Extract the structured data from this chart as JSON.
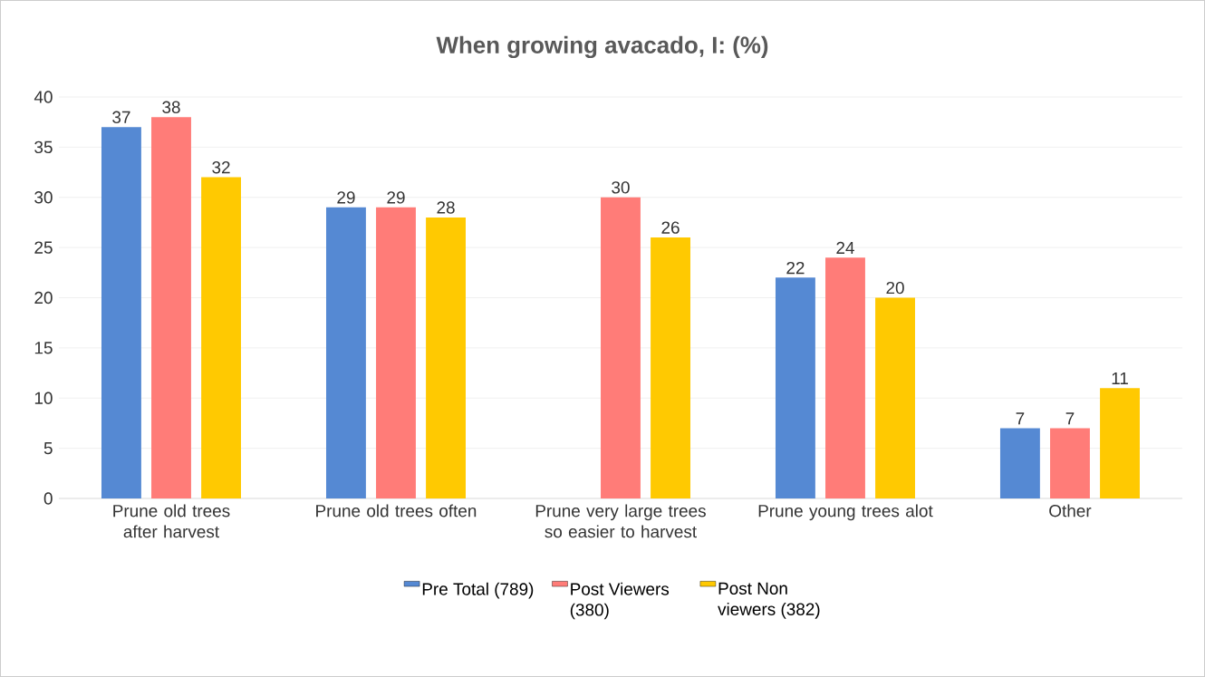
{
  "chart_data": {
    "type": "bar",
    "title": "When growing avacado, I: (%)",
    "categories": [
      "Prune old trees after harvest",
      "Prune old trees often",
      "Prune very large trees so easier to harvest",
      "Prune young trees alot",
      "Other"
    ],
    "series": [
      {
        "name": "Pre Total (789)",
        "color": "#5589d3",
        "values": [
          37,
          29,
          null,
          22,
          7
        ]
      },
      {
        "name": "Post Viewers (380)",
        "color": "#ff7c78",
        "values": [
          38,
          29,
          30,
          24,
          7
        ]
      },
      {
        "name": "Post Non viewers (382)",
        "color": "#ffc901",
        "values": [
          32,
          28,
          26,
          20,
          11
        ]
      }
    ],
    "ylim": [
      0,
      40
    ],
    "yticks": [
      0,
      5,
      10,
      15,
      20,
      25,
      30,
      35,
      40
    ],
    "grid": "y",
    "legend": "bottom",
    "data_labels": true
  }
}
